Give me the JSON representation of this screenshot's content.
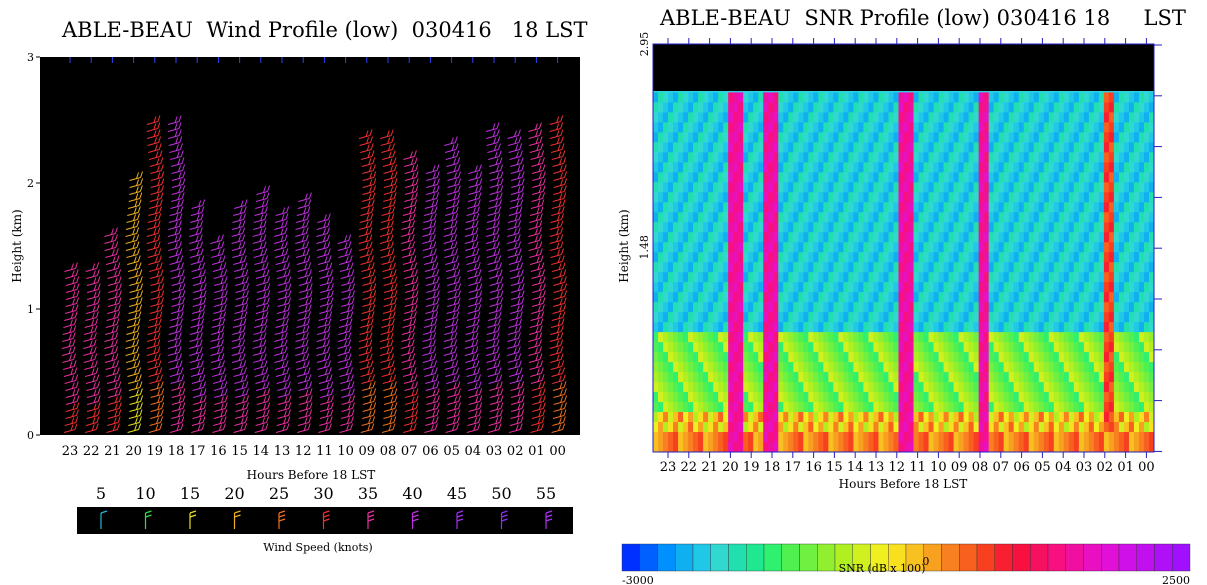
{
  "chart_data": [
    {
      "type": "wind-barb-profile",
      "title": "ABLE-BEAU  Wind Profile (low)  030416   18 LST",
      "xlabel": "Hours Before  18   LST",
      "ylabel": "Height  (km)",
      "x_ticks": [
        "23",
        "22",
        "21",
        "20",
        "19",
        "18",
        "17",
        "16",
        "15",
        "14",
        "13",
        "12",
        "11",
        "10",
        "09",
        "08",
        "07",
        "06",
        "05",
        "04",
        "03",
        "02",
        "01",
        "00"
      ],
      "y_ticks": [
        "0",
        "1",
        "2",
        "3"
      ],
      "ylim": [
        0,
        3
      ],
      "legend_title": "Wind Speed (knots)",
      "legend_values": [
        "5",
        "10",
        "15",
        "20",
        "25",
        "30",
        "35",
        "40",
        "45",
        "50",
        "55"
      ],
      "legend_colors": [
        "#22b8d8",
        "#33dd44",
        "#e8e020",
        "#f0b020",
        "#f07020",
        "#f03030",
        "#e830a0",
        "#c030e0",
        "#a030f0",
        "#9030f8",
        "#b030ff"
      ],
      "columns": [
        {
          "hour": "23",
          "top_km": 1.35,
          "speed": 35
        },
        {
          "hour": "22",
          "top_km": 1.3,
          "speed": 35
        },
        {
          "hour": "21",
          "top_km": 1.6,
          "speed": 35
        },
        {
          "hour": "20",
          "top_km": 2.05,
          "speed": 22
        },
        {
          "hour": "19",
          "top_km": 2.5,
          "speed": 30
        },
        {
          "hour": "18",
          "top_km": 2.5,
          "speed": 40
        },
        {
          "hour": "17",
          "top_km": 1.85,
          "speed": 40
        },
        {
          "hour": "16",
          "top_km": 1.55,
          "speed": 40
        },
        {
          "hour": "15",
          "top_km": 1.8,
          "speed": 40
        },
        {
          "hour": "14",
          "top_km": 1.95,
          "speed": 40
        },
        {
          "hour": "13",
          "top_km": 1.75,
          "speed": 40
        },
        {
          "hour": "12",
          "top_km": 1.9,
          "speed": 40
        },
        {
          "hour": "11",
          "top_km": 1.7,
          "speed": 40
        },
        {
          "hour": "10",
          "top_km": 1.55,
          "speed": 40
        },
        {
          "hour": "09",
          "top_km": 2.4,
          "speed": 32
        },
        {
          "hour": "08",
          "top_km": 2.4,
          "speed": 32
        },
        {
          "hour": "07",
          "top_km": 2.2,
          "speed": 35
        },
        {
          "hour": "06",
          "top_km": 2.1,
          "speed": 40
        },
        {
          "hour": "05",
          "top_km": 2.3,
          "speed": 40
        },
        {
          "hour": "04",
          "top_km": 2.1,
          "speed": 40
        },
        {
          "hour": "03",
          "top_km": 2.45,
          "speed": 40
        },
        {
          "hour": "02",
          "top_km": 2.4,
          "speed": 38
        },
        {
          "hour": "01",
          "top_km": 2.45,
          "speed": 35
        },
        {
          "hour": "00",
          "top_km": 2.5,
          "speed": 30
        }
      ]
    },
    {
      "type": "heatmap",
      "title": "ABLE-BEAU  SNR Profile (low) 030416 18     LST",
      "xlabel": "Hours Before  18    LST",
      "ylabel": "Height  (km)",
      "x_ticks": [
        "23",
        "22",
        "21",
        "20",
        "19",
        "18",
        "17",
        "16",
        "15",
        "14",
        "13",
        "12",
        "11",
        "10",
        "09",
        "08",
        "07",
        "06",
        "05",
        "04",
        "03",
        "02",
        "01",
        "00"
      ],
      "y_ticks": [
        "1.48",
        "2.95"
      ],
      "ylim": [
        0,
        2.95
      ],
      "data_top_km": 2.6,
      "colorbar_label": "SNR  (dB x 100)",
      "colorbar_ticks": [
        "-3000",
        "0",
        "2500"
      ],
      "colorbar_range": [
        -3000,
        2500
      ],
      "colorbar_colors": [
        "#0030ff",
        "#0060ff",
        "#0090ff",
        "#10b0f0",
        "#20c8e8",
        "#30d8d0",
        "#20e0b0",
        "#20e890",
        "#30f070",
        "#50f050",
        "#70f040",
        "#90f030",
        "#b0f020",
        "#d0f020",
        "#f0f020",
        "#f8e020",
        "#f8c020",
        "#f8a020",
        "#f88020",
        "#f86020",
        "#f84020",
        "#f82030",
        "#f81040",
        "#f81060",
        "#f81080",
        "#f010a0",
        "#e810c0",
        "#e010d8",
        "#d010e8",
        "#c010f0",
        "#b010f8",
        "#a010ff"
      ],
      "bands": [
        {
          "from_hour": 20.1,
          "to_hour": 19.3,
          "level": "high"
        },
        {
          "from_hour": 18.4,
          "to_hour": 17.7,
          "level": "high"
        },
        {
          "from_hour": 12.0,
          "to_hour": 11.2,
          "level": "high"
        },
        {
          "from_hour": 8.0,
          "to_hour": 7.5,
          "level": "high"
        },
        {
          "from_hour": 2.0,
          "to_hour": 1.5,
          "level": "medium"
        }
      ]
    }
  ]
}
